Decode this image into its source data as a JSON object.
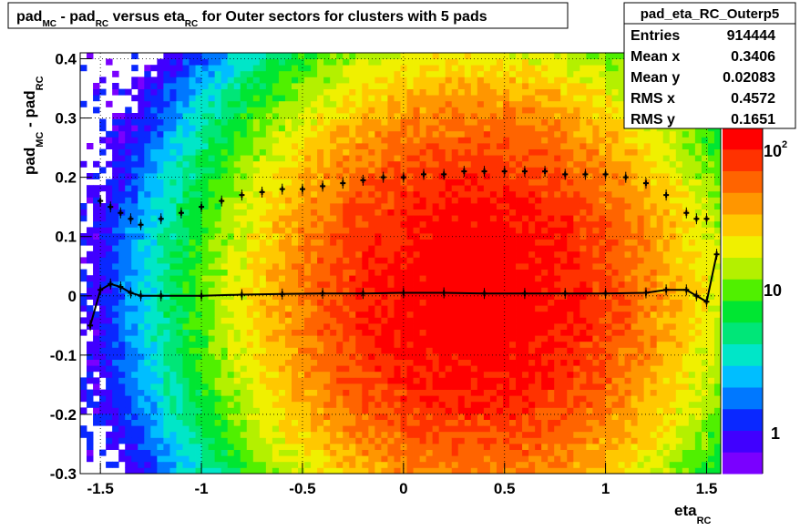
{
  "title": {
    "p1": "pad",
    "s1": "MC",
    "p2": " - pad",
    "s2": "RC",
    "p3": " versus eta",
    "s3": "RC",
    "p4": " for Outer sectors for clusters with 5 pads"
  },
  "stats": {
    "name": "pad_eta_RC_Outerp5",
    "rows": [
      {
        "label": "Entries",
        "value": "914444"
      },
      {
        "label": "Mean x",
        "value": "0.3406"
      },
      {
        "label": "Mean y",
        "value": "0.02083"
      },
      {
        "label": "RMS x",
        "value": "0.4572"
      },
      {
        "label": "RMS y",
        "value": "0.1651"
      }
    ]
  },
  "colors": {
    "palette": [
      "#7a00ff",
      "#4000ff",
      "#0a28ff",
      "#0078ff",
      "#00beff",
      "#00e6c8",
      "#00e678",
      "#00e632",
      "#50f000",
      "#b4f000",
      "#f0f000",
      "#ffc800",
      "#ff9600",
      "#ff6400",
      "#ff3200",
      "#ff0000"
    ]
  },
  "chart_data": {
    "type": "heatmap",
    "xlabel": {
      "main": "eta",
      "sub": "RC"
    },
    "ylabel": {
      "main": "pad",
      "sub1": "MC",
      "mid": " - pad",
      "sub2": "RC"
    },
    "xlim": [
      -1.6,
      1.57
    ],
    "ylim": [
      -0.3,
      0.41
    ],
    "x_ticks": [
      -1.5,
      -1,
      -0.5,
      0,
      0.5,
      1,
      1.5
    ],
    "x_tick_labels": [
      "-1.5",
      "-1",
      "-0.5",
      "0",
      "0.5",
      "1",
      "1.5"
    ],
    "y_ticks": [
      -0.3,
      -0.2,
      -0.1,
      0,
      0.1,
      0.2,
      0.3,
      0.4
    ],
    "y_tick_labels": [
      "-0.3",
      "-0.2",
      "-0.1",
      "0",
      "0.1",
      "0.2",
      "0.3",
      "0.4"
    ],
    "grid": true,
    "colorbar": {
      "scale": "log",
      "zlim": [
        0.5,
        250
      ],
      "labels": [
        "1",
        "10",
        "10"
      ],
      "label_exp": "2"
    },
    "density": {
      "center_x": 0.35,
      "sigma_x": 0.6,
      "center_y": 0.0,
      "sigma_y": 0.2,
      "peak": 250
    },
    "profiles": [
      {
        "name": "mean",
        "x": [
          -1.55,
          -1.5,
          -1.45,
          -1.4,
          -1.35,
          -1.3,
          -1.2,
          -1.0,
          -0.8,
          -0.6,
          -0.4,
          -0.2,
          0,
          0.2,
          0.4,
          0.6,
          0.8,
          1.0,
          1.2,
          1.3,
          1.4,
          1.45,
          1.5,
          1.55
        ],
        "y": [
          -0.05,
          0.01,
          0.02,
          0.015,
          0.005,
          0.0,
          0.0,
          0.0,
          0.002,
          0.003,
          0.004,
          0.004,
          0.005,
          0.005,
          0.004,
          0.004,
          0.004,
          0.004,
          0.005,
          0.01,
          0.01,
          0.0,
          -0.01,
          0.07
        ]
      },
      {
        "name": "rms",
        "x": [
          -1.5,
          -1.45,
          -1.4,
          -1.35,
          -1.3,
          -1.2,
          -1.1,
          -1.0,
          -0.9,
          -0.8,
          -0.7,
          -0.6,
          -0.5,
          -0.4,
          -0.3,
          -0.2,
          -0.1,
          0,
          0.1,
          0.2,
          0.3,
          0.4,
          0.5,
          0.6,
          0.7,
          0.8,
          0.9,
          1.0,
          1.1,
          1.2,
          1.3,
          1.4,
          1.45,
          1.5
        ],
        "y": [
          0.16,
          0.15,
          0.14,
          0.13,
          0.12,
          0.13,
          0.14,
          0.15,
          0.16,
          0.17,
          0.175,
          0.18,
          0.18,
          0.185,
          0.19,
          0.195,
          0.2,
          0.2,
          0.205,
          0.205,
          0.21,
          0.21,
          0.21,
          0.21,
          0.21,
          0.205,
          0.205,
          0.205,
          0.2,
          0.19,
          0.17,
          0.14,
          0.13,
          0.13
        ]
      }
    ]
  }
}
